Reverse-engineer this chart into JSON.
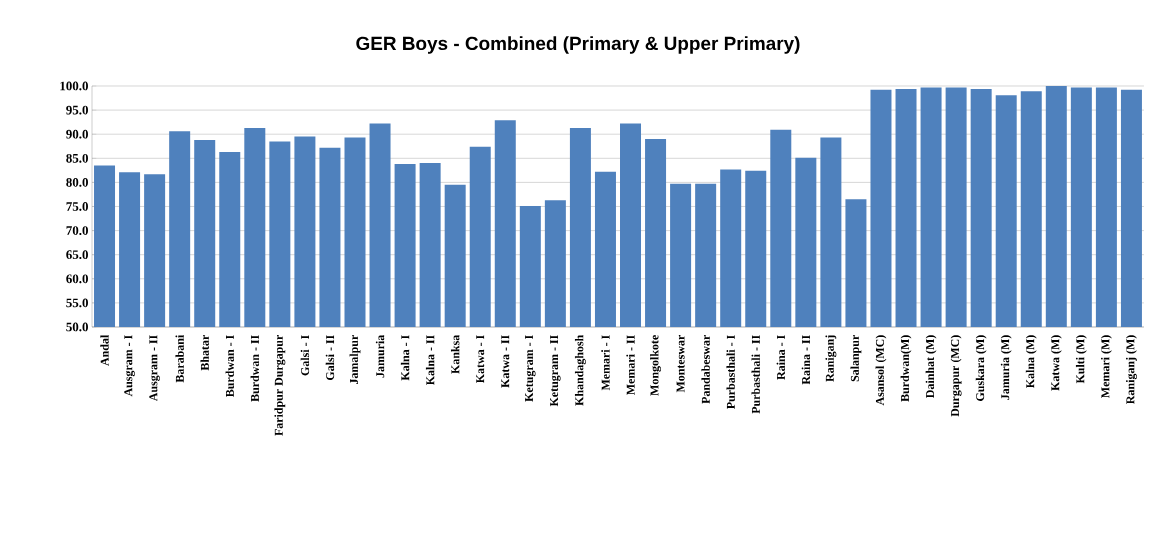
{
  "chart_data": {
    "type": "bar",
    "title": "GER Boys - Combined (Primary & Upper Primary)",
    "categories": [
      "Andal",
      "Ausgram - I",
      "Ausgram - II",
      "Barabani",
      "Bhatar",
      "Burdwan - I",
      "Burdwan - II",
      "Faridpur Durgapur",
      "Galsi - I",
      "Galsi - II",
      "Jamalpur",
      "Jamuria",
      "Kalna - I",
      "Kalna - II",
      "Kanksa",
      "Katwa - I",
      "Katwa - II",
      "Ketugram - I",
      "Ketugram - II",
      "Khandaghosh",
      "Memari - I",
      "Memari - II",
      "Mongolkote",
      "Monteswar",
      "Pandabeswar",
      "Purbasthali - I",
      "Purbasthali - II",
      "Raina - I",
      "Raina - II",
      "Raniganj",
      "Salanpur",
      "Asansol (MC)",
      "Burdwan(M)",
      "Dainhat (M)",
      "Durgapur (MC)",
      "Guskara (M)",
      "Jamuria (M)",
      "Kalna (M)",
      "Katwa (M)",
      "Kulti (M)",
      "Memari (M)",
      "Raniganj (M)"
    ],
    "values": [
      83.5,
      82.1,
      81.7,
      90.6,
      88.8,
      86.3,
      91.3,
      88.5,
      89.5,
      87.2,
      89.3,
      92.2,
      83.8,
      84.0,
      79.5,
      87.4,
      92.9,
      75.1,
      76.3,
      91.3,
      82.2,
      92.2,
      89.0,
      79.7,
      79.7,
      82.7,
      82.4,
      90.9,
      85.1,
      89.3,
      76.5,
      99.2,
      99.4,
      99.7,
      99.7,
      99.4,
      98.1,
      98.9,
      100.0,
      99.7,
      99.7,
      99.2
    ],
    "color": "#4f81bd",
    "ylim": [
      50,
      100
    ],
    "yticks": [
      {
        "value": 50,
        "label": "50.0"
      },
      {
        "value": 55,
        "label": "55.0"
      },
      {
        "value": 60,
        "label": "60.0"
      },
      {
        "value": 65,
        "label": "65.0"
      },
      {
        "value": 70,
        "label": "70.0"
      },
      {
        "value": 75,
        "label": "75.0"
      },
      {
        "value": 80,
        "label": "80.0"
      },
      {
        "value": 85,
        "label": "85.0"
      },
      {
        "value": 90,
        "label": "90.0"
      },
      {
        "value": 95,
        "label": "95.0"
      },
      {
        "value": 100,
        "label": "100.0"
      }
    ],
    "grid": "y"
  }
}
